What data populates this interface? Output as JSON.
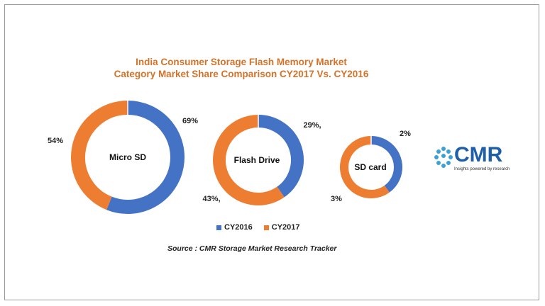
{
  "title_line1": "India Consumer Storage Flash Memory Market",
  "title_line2": "Category Market Share Comparison CY2017 Vs. CY2016",
  "chart_data": {
    "type": "pie",
    "subtype": "donut",
    "categories": [
      "Micro SD",
      "Flash Drive",
      "SD card"
    ],
    "series": [
      {
        "name": "CY2016",
        "values": [
          69,
          29,
          2
        ],
        "labels": [
          "69%",
          "29%,",
          "2%"
        ],
        "color": "#4472c4"
      },
      {
        "name": "CY2017",
        "values": [
          54,
          43,
          3
        ],
        "labels": [
          "54%",
          "43%,",
          "3%"
        ],
        "color": "#ed7d31"
      }
    ],
    "legend": "bottom"
  },
  "legend": {
    "cy2016": "CY2016",
    "cy2017": "CY2017"
  },
  "source": "Source : CMR Storage Market Research Tracker",
  "logo": {
    "text": "CMR",
    "tagline": "Insights powered by research",
    "color": "#1f5fa8"
  }
}
